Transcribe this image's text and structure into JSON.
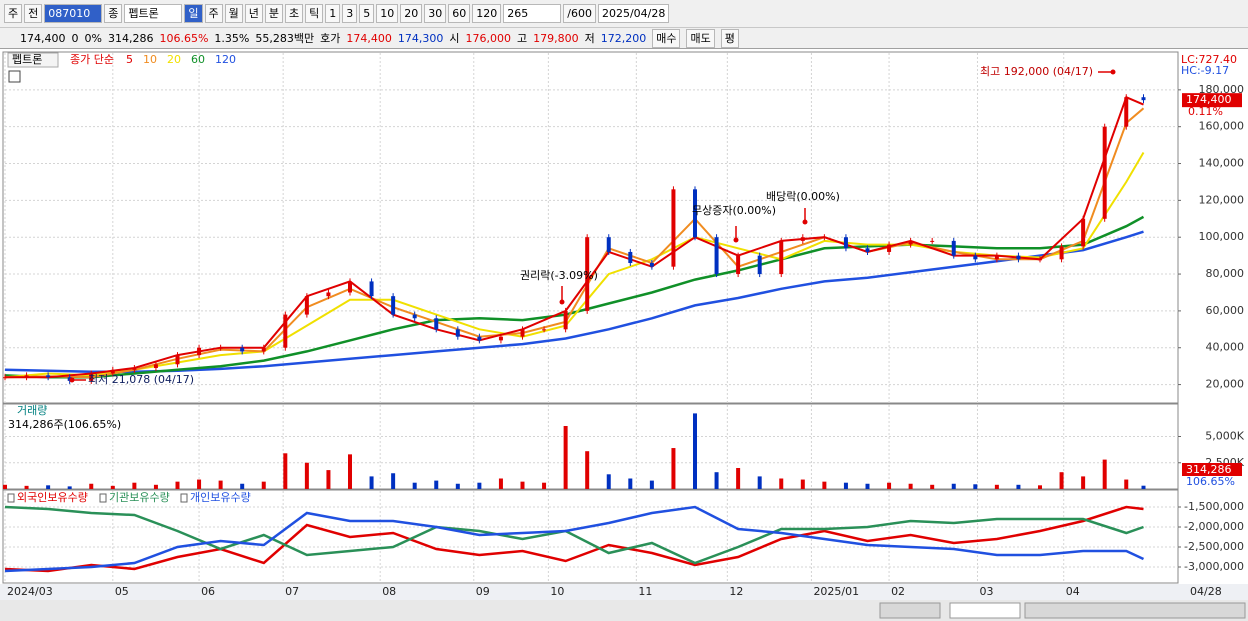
{
  "toolbar": {
    "items": [
      "주",
      "전",
      "087010",
      "종",
      "펩트론",
      "일",
      "주",
      "월",
      "년",
      "분",
      "초",
      "틱",
      "1",
      "3",
      "5",
      "10",
      "20",
      "30",
      "60",
      "120",
      "265",
      "/600",
      "2025/04/28"
    ]
  },
  "info_bar": {
    "items": [
      "174,400",
      "0",
      "0%",
      "314,286",
      "106.65%",
      "1.35%",
      "55,283백만",
      "호가",
      "174,400",
      "174,300",
      "시",
      "176,000",
      "고",
      "179,800",
      "저",
      "172,200",
      "매수",
      "매도",
      "평"
    ]
  },
  "chart_data": [
    {
      "type": "candlestick",
      "panel_label": "펩트론",
      "legend_title": "종가 단순",
      "up_color": "#e00000",
      "down_color": "#0030c0",
      "price": {
        "x": [
          0,
          5,
          10,
          15,
          20,
          25,
          30,
          35,
          40,
          45,
          50,
          55,
          60,
          65,
          70,
          75,
          80,
          85,
          90,
          95,
          100,
          105,
          110,
          115,
          120,
          125,
          130,
          135,
          140,
          145,
          150,
          155,
          160,
          165,
          170,
          175,
          180,
          185,
          190,
          195,
          200,
          205,
          210,
          215,
          220,
          225,
          230,
          235,
          240,
          245,
          250,
          255,
          260,
          264
        ],
        "values": [
          24000,
          25000,
          24000,
          22000,
          26000,
          28000,
          29000,
          31000,
          36000,
          40000,
          40000,
          38000,
          40000,
          58000,
          68000,
          70000,
          76000,
          68000,
          58000,
          56000,
          50000,
          46000,
          44000,
          46000,
          50000,
          50000,
          60000,
          100000,
          92000,
          86000,
          84000,
          126000,
          100000,
          80000,
          90000,
          80000,
          98000,
          100000,
          100000,
          94000,
          92000,
          96000,
          98000,
          98000,
          90000,
          88000,
          90000,
          88000,
          88000,
          95000,
          110000,
          160000,
          176000,
          174400
        ]
      },
      "x": [
        0,
        10,
        20,
        30,
        40,
        50,
        60,
        70,
        80,
        90,
        100,
        110,
        120,
        130,
        140,
        150,
        160,
        170,
        180,
        190,
        200,
        210,
        220,
        230,
        240,
        250,
        260,
        264
      ],
      "xlim": [
        0,
        272
      ],
      "ylim": [
        10000,
        200000
      ],
      "yticks": [
        {
          "value": 20000,
          "label": "20,000"
        },
        {
          "value": 40000,
          "label": "40,000"
        },
        {
          "value": 60000,
          "label": "60,000"
        },
        {
          "value": 80000,
          "label": "80,000"
        },
        {
          "value": 100000,
          "label": "100,000"
        },
        {
          "value": 120000,
          "label": "120,000"
        },
        {
          "value": 140000,
          "label": "140,000"
        },
        {
          "value": 160000,
          "label": "160,000"
        },
        {
          "value": 180000,
          "label": "180,000"
        }
      ],
      "grid": true,
      "series": [
        {
          "name": "5",
          "color": "#e00000",
          "values": [
            24000,
            24000,
            26000,
            29000,
            36000,
            40000,
            40000,
            68000,
            76000,
            58000,
            50000,
            44000,
            50000,
            60000,
            92000,
            84000,
            100000,
            90000,
            98000,
            100000,
            92000,
            98000,
            90000,
            90000,
            88000,
            110000,
            176000,
            172000
          ]
        },
        {
          "name": "10",
          "color": "#f08c20",
          "values": [
            24000,
            24500,
            24000,
            28000,
            34000,
            39000,
            38000,
            62000,
            72000,
            62000,
            54000,
            46000,
            48000,
            54000,
            94000,
            86000,
            110000,
            84000,
            92000,
            100000,
            92000,
            97000,
            92000,
            88000,
            88000,
            98000,
            162000,
            170000
          ]
        },
        {
          "name": "20",
          "color": "#f0e000",
          "values": [
            24000,
            26000,
            25000,
            28000,
            32000,
            36000,
            38000,
            52000,
            66000,
            66000,
            58000,
            50000,
            46000,
            52000,
            80000,
            88000,
            100000,
            94000,
            88000,
            98000,
            96000,
            96000,
            92000,
            90000,
            89000,
            94000,
            130000,
            146000
          ]
        },
        {
          "name": "60",
          "color": "#109028",
          "values": [
            25000,
            24000,
            24000,
            26000,
            28000,
            30000,
            33000,
            38000,
            44000,
            50000,
            55000,
            56000,
            55000,
            58000,
            64000,
            70000,
            77000,
            82000,
            88000,
            94000,
            95000,
            96000,
            95000,
            94000,
            94000,
            96000,
            106000,
            111000
          ]
        },
        {
          "name": "120",
          "color": "#2050e0",
          "values": [
            28000,
            27500,
            27000,
            27000,
            27500,
            28500,
            30000,
            32000,
            34000,
            36000,
            38000,
            40000,
            42000,
            45000,
            50000,
            56000,
            63000,
            67000,
            72000,
            76000,
            78000,
            81000,
            84000,
            87000,
            90000,
            93000,
            100000,
            103000
          ]
        }
      ],
      "annotations": [
        "최고 192,000 (04/17)",
        "최저 21,078 (04/17)",
        "권리락(-3.09%)",
        "무상증자(0.00%)",
        "배당락(0.00%)"
      ],
      "right_labels": [
        "LC:727.40",
        "HC:-9.17",
        "174,400",
        "0.11%"
      ]
    },
    {
      "type": "bar",
      "panel_label": "거래량",
      "summary": "314,286주(106.65%)",
      "x": [
        0,
        5,
        10,
        15,
        20,
        25,
        30,
        35,
        40,
        45,
        50,
        55,
        60,
        65,
        70,
        75,
        80,
        85,
        90,
        95,
        100,
        105,
        110,
        115,
        120,
        125,
        130,
        135,
        140,
        145,
        150,
        155,
        160,
        165,
        170,
        175,
        180,
        185,
        190,
        195,
        200,
        205,
        210,
        215,
        220,
        225,
        230,
        235,
        240,
        245,
        250,
        255,
        260,
        264
      ],
      "values": [
        400000,
        300000,
        350000,
        250000,
        500000,
        300000,
        600000,
        400000,
        700000,
        900000,
        800000,
        500000,
        700000,
        3400000,
        2500000,
        1800000,
        3300000,
        1200000,
        1500000,
        600000,
        800000,
        500000,
        600000,
        1000000,
        700000,
        600000,
        6000000,
        3600000,
        1400000,
        1000000,
        800000,
        3900000,
        7200000,
        1600000,
        2000000,
        1200000,
        1000000,
        900000,
        700000,
        600000,
        500000,
        600000,
        500000,
        400000,
        500000,
        450000,
        400000,
        400000,
        350000,
        1600000,
        1200000,
        2800000,
        900000,
        314286
      ],
      "xlim": [
        0,
        272
      ],
      "ylim": [
        0,
        8000000
      ],
      "yticks": [
        {
          "value": 2500000,
          "label": "2,500K"
        },
        {
          "value": 5000000,
          "label": "5,000K"
        }
      ],
      "right_labels": [
        "314,286",
        "106.65%"
      ]
    },
    {
      "type": "line",
      "x": [
        0,
        10,
        20,
        30,
        40,
        50,
        60,
        70,
        80,
        90,
        100,
        110,
        120,
        130,
        140,
        150,
        160,
        170,
        180,
        190,
        200,
        210,
        220,
        230,
        240,
        250,
        260,
        264
      ],
      "xlim": [
        0,
        272
      ],
      "ylim": [
        -3400000,
        -1100000
      ],
      "yticks": [
        {
          "value": -1500000,
          "label": "-1,500,000"
        },
        {
          "value": -2000000,
          "label": "-2,000,000"
        },
        {
          "value": -2500000,
          "label": "-2,500,000"
        },
        {
          "value": -3000000,
          "label": "-3,000,000"
        }
      ],
      "xticks": [
        {
          "value": 0,
          "label": "2024/03"
        },
        {
          "value": 25,
          "label": "05"
        },
        {
          "value": 45,
          "label": "06"
        },
        {
          "value": 64.5,
          "label": "07"
        },
        {
          "value": 87,
          "label": "08"
        },
        {
          "value": 108.7,
          "label": "09"
        },
        {
          "value": 126,
          "label": "10"
        },
        {
          "value": 146.4,
          "label": "11"
        },
        {
          "value": 167.5,
          "label": "12"
        },
        {
          "value": 187,
          "label": "2025/01"
        },
        {
          "value": 205,
          "label": "02"
        },
        {
          "value": 225.5,
          "label": "03"
        },
        {
          "value": 245.5,
          "label": "04"
        }
      ],
      "last_date": "04/28",
      "series": [
        {
          "name": "외국인보유수량",
          "color": "#e00000",
          "values": [
            -3050000,
            -3100000,
            -2950000,
            -3050000,
            -2750000,
            -2550000,
            -2900000,
            -1950000,
            -2250000,
            -2150000,
            -2550000,
            -2700000,
            -2600000,
            -2850000,
            -2450000,
            -2650000,
            -2950000,
            -2750000,
            -2300000,
            -2100000,
            -2350000,
            -2200000,
            -2400000,
            -2300000,
            -2100000,
            -1850000,
            -1500000,
            -1550000
          ]
        },
        {
          "name": "기관보유수량",
          "color": "#2a9058",
          "values": [
            -1500000,
            -1550000,
            -1650000,
            -1700000,
            -2100000,
            -2550000,
            -2200000,
            -2700000,
            -2600000,
            -2500000,
            -2000000,
            -2100000,
            -2300000,
            -2100000,
            -2650000,
            -2400000,
            -2900000,
            -2500000,
            -2050000,
            -2050000,
            -2000000,
            -1850000,
            -1900000,
            -1800000,
            -1800000,
            -1800000,
            -2150000,
            -2000000
          ]
        },
        {
          "name": "개인보유수량",
          "color": "#2050e0",
          "values": [
            -3100000,
            -3050000,
            -3000000,
            -2900000,
            -2500000,
            -2350000,
            -2450000,
            -1650000,
            -1850000,
            -1850000,
            -2000000,
            -2200000,
            -2150000,
            -2100000,
            -1900000,
            -1650000,
            -1500000,
            -2050000,
            -2150000,
            -2300000,
            -2450000,
            -2500000,
            -2550000,
            -2700000,
            -2700000,
            -2600000,
            -2600000,
            -2800000
          ]
        }
      ]
    }
  ]
}
